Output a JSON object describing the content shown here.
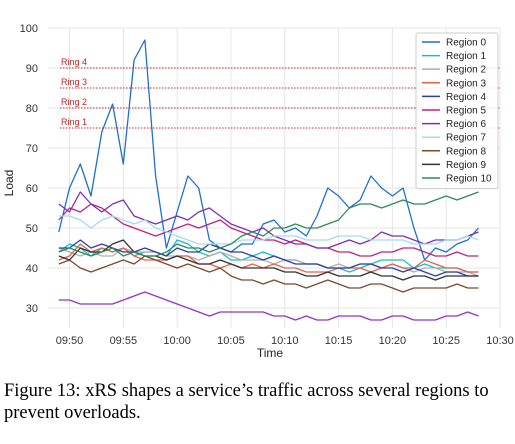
{
  "chart_data": {
    "type": "line",
    "title": "",
    "xlabel": "Time",
    "ylabel": "Load",
    "x_ticks": [
      "09:50",
      "09:55",
      "10:00",
      "10:05",
      "10:10",
      "10:15",
      "10:20",
      "10:25",
      "10:30"
    ],
    "y_ticks": [
      30,
      40,
      50,
      60,
      70,
      80,
      90,
      100
    ],
    "x_range_minutes": [
      -12,
      30
    ],
    "ylim": [
      25,
      100
    ],
    "grid": true,
    "legend_position": "top-right",
    "thresholds": [
      {
        "label": "Ring 4",
        "value": 90,
        "color": "#cc2222"
      },
      {
        "label": "Ring 3",
        "value": 85,
        "color": "#cc2222"
      },
      {
        "label": "Ring 2",
        "value": 80,
        "color": "#cc2222"
      },
      {
        "label": "Ring 1",
        "value": 75,
        "color": "#cc2222"
      }
    ],
    "x_minutes": [
      -11,
      -10,
      -9,
      -8,
      -7,
      -6,
      -5,
      -4,
      -3,
      -2,
      -1,
      0,
      1,
      2,
      3,
      4,
      5,
      6,
      7,
      8,
      9,
      10,
      11,
      12,
      13,
      14,
      15,
      16,
      17,
      18,
      19,
      20,
      21,
      22,
      23,
      24,
      25,
      26,
      27,
      28
    ],
    "series": [
      {
        "name": "Region 0",
        "color": "#1f6fd1",
        "values": [
          49,
          60,
          66,
          58,
          74,
          81,
          66,
          92,
          97,
          63,
          45,
          54,
          63,
          60,
          47,
          45,
          44,
          46,
          46,
          51,
          52,
          49,
          50,
          48,
          53,
          60,
          58,
          55,
          57,
          63,
          60,
          58,
          60,
          50,
          42,
          45,
          44,
          46,
          47,
          50
        ]
      },
      {
        "name": "Region 1",
        "color": "#17becf",
        "values": [
          44,
          46,
          45,
          43,
          45,
          44,
          45,
          43,
          44,
          44,
          43,
          47,
          46,
          44,
          43,
          44,
          42,
          42,
          43,
          44,
          43,
          42,
          42,
          41,
          41,
          40,
          40,
          39,
          40,
          41,
          42,
          42,
          42,
          40,
          41,
          40,
          40,
          40,
          39,
          39
        ]
      },
      {
        "name": "Region 2",
        "color": "#b0b0b0",
        "values": [
          45,
          44,
          43,
          44,
          43,
          43,
          45,
          44,
          44,
          44,
          43,
          43,
          43,
          42,
          43,
          44,
          43,
          42,
          42,
          42,
          41,
          42,
          42,
          41,
          41,
          40,
          41,
          40,
          41,
          41,
          40,
          41,
          40,
          39,
          40,
          40,
          39,
          39,
          39,
          38
        ]
      },
      {
        "name": "Region 3",
        "color": "#e8624a",
        "values": [
          42,
          43,
          46,
          44,
          45,
          44,
          45,
          43,
          42,
          42,
          42,
          43,
          43,
          41,
          41,
          40,
          41,
          40,
          41,
          40,
          41,
          40,
          40,
          39,
          39,
          39,
          40,
          40,
          40,
          39,
          40,
          41,
          40,
          40,
          42,
          41,
          40,
          40,
          39,
          39
        ]
      },
      {
        "name": "Region 4",
        "color": "#2b3fa8",
        "values": [
          45,
          45,
          47,
          45,
          46,
          45,
          44,
          44,
          45,
          44,
          43,
          45,
          44,
          44,
          46,
          45,
          44,
          44,
          43,
          42,
          43,
          42,
          41,
          41,
          41,
          40,
          40,
          40,
          41,
          41,
          40,
          40,
          39,
          40,
          39,
          38,
          39,
          39,
          38,
          38
        ]
      },
      {
        "name": "Region 5",
        "color": "#c4207f",
        "values": [
          52,
          55,
          54,
          56,
          55,
          53,
          51,
          50,
          49,
          48,
          49,
          50,
          51,
          50,
          51,
          52,
          50,
          49,
          48,
          47,
          47,
          46,
          47,
          46,
          45,
          45,
          44,
          44,
          43,
          43,
          44,
          44,
          45,
          45,
          44,
          43,
          43,
          44,
          43,
          43
        ]
      },
      {
        "name": "Region 6",
        "color": "#7a2fbd",
        "values": [
          56,
          54,
          59,
          56,
          54,
          56,
          57,
          53,
          52,
          51,
          52,
          53,
          52,
          54,
          55,
          53,
          51,
          50,
          49,
          50,
          48,
          47,
          46,
          46,
          45,
          45,
          46,
          47,
          46,
          47,
          49,
          48,
          48,
          47,
          46,
          47,
          47,
          47,
          48,
          49
        ]
      },
      {
        "name": "Region 7",
        "color": "#a3daf2",
        "values": [
          53,
          53,
          52,
          50,
          52,
          53,
          52,
          51,
          52,
          50,
          49,
          48,
          47,
          46,
          46,
          46,
          46,
          47,
          47,
          47,
          48,
          48,
          48,
          47,
          47,
          47,
          48,
          48,
          48,
          47,
          47,
          47,
          47,
          46,
          46,
          46,
          47,
          47,
          48,
          47
        ]
      },
      {
        "name": "Region 8",
        "color": "#7b4a2a",
        "values": [
          41,
          42,
          40,
          39,
          40,
          41,
          42,
          41,
          43,
          42,
          41,
          40,
          41,
          40,
          39,
          40,
          38,
          37,
          37,
          36,
          37,
          36,
          36,
          35,
          36,
          37,
          36,
          35,
          35,
          36,
          36,
          35,
          34,
          35,
          35,
          35,
          35,
          36,
          35,
          35
        ]
      },
      {
        "name": "Region 9",
        "color": "#333333",
        "values": [
          43,
          42,
          45,
          44,
          44,
          46,
          47,
          44,
          43,
          43,
          42,
          43,
          42,
          41,
          41,
          42,
          41,
          40,
          40,
          40,
          40,
          39,
          39,
          38,
          38,
          39,
          38,
          38,
          38,
          39,
          38,
          38,
          37,
          38,
          38,
          37,
          38,
          38,
          38,
          38
        ]
      },
      {
        "name": "Region 10",
        "color": "#2e8b57",
        "values": [
          44,
          45,
          44,
          43,
          44,
          45,
          43,
          44,
          43,
          43,
          44,
          46,
          45,
          45,
          44,
          45,
          46,
          48,
          49,
          48,
          50,
          50,
          51,
          50,
          50,
          51,
          52,
          55,
          56,
          56,
          55,
          56,
          57,
          56,
          56,
          57,
          58,
          57,
          58,
          59
        ]
      },
      {
        "name": "",
        "color": "#9b30c8",
        "values": [
          32,
          32,
          31,
          31,
          31,
          31,
          32,
          33,
          34,
          33,
          32,
          31,
          30,
          29,
          28,
          29,
          29,
          29,
          29,
          29,
          28,
          28,
          27,
          28,
          27,
          27,
          28,
          28,
          28,
          27,
          27,
          28,
          28,
          27,
          27,
          27,
          28,
          28,
          29,
          28
        ]
      }
    ]
  },
  "caption": "Figure 13: xRS shapes a service’s traffic across several regions to prevent overloads."
}
